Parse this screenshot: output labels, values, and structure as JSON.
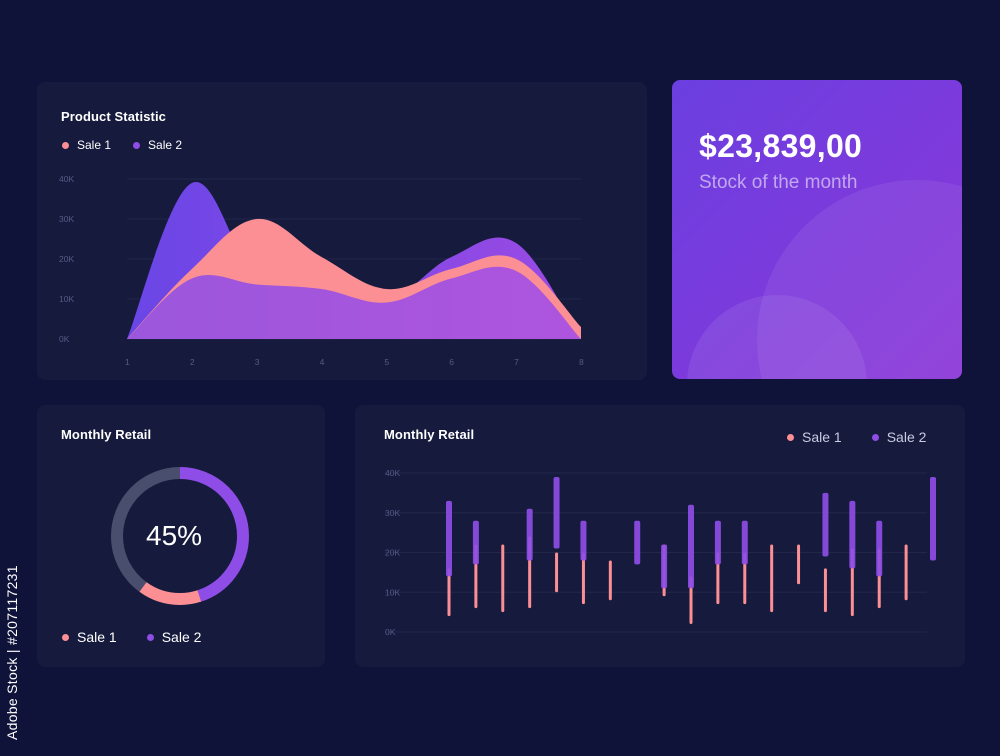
{
  "product_statistic": {
    "title": "Product Statistic",
    "legend": [
      {
        "label": "Sale 1",
        "color": "#fb8f94"
      },
      {
        "label": "Sale 2",
        "color": "#8e4de6"
      }
    ],
    "chart_data": {
      "type": "area",
      "x": [
        1,
        2,
        3,
        4,
        5,
        6,
        7,
        8
      ],
      "x_tick_labels": [
        "1",
        "2",
        "3",
        "4",
        "5",
        "6",
        "7",
        "8"
      ],
      "y_tick_labels": [
        "40K",
        "30K",
        "20K",
        "10K",
        "0K"
      ],
      "ylim": [
        0,
        40000
      ],
      "grid": true,
      "series": [
        {
          "name": "Sale 1",
          "color": "#fb8f94",
          "values": [
            0,
            17500,
            30000,
            20500,
            12500,
            17500,
            20000,
            3000
          ]
        },
        {
          "name": "Sale 2",
          "color": "#7a45e0",
          "values": [
            0,
            39000,
            15500,
            14000,
            9500,
            20500,
            24000,
            0
          ]
        }
      ]
    }
  },
  "stock": {
    "value": "$23,839,00",
    "label": "Stock of the month"
  },
  "monthly_retail_donut": {
    "title": "Monthly Retail",
    "percent_label": "45%",
    "legend": [
      {
        "label": "Sale 1",
        "color": "#fb8f94"
      },
      {
        "label": "Sale 2",
        "color": "#8e4de6"
      }
    ],
    "chart_data": {
      "type": "pie",
      "segments": [
        {
          "name": "Sale 2",
          "color": "#8e4de6",
          "fraction": 0.45
        },
        {
          "name": "Sale 1",
          "color": "#fb8f94",
          "fraction": 0.15
        },
        {
          "name": "Remainder",
          "color": "#4a4e6e",
          "fraction": 0.4
        }
      ]
    }
  },
  "monthly_retail_bars": {
    "title": "Monthly Retail",
    "legend": [
      {
        "label": "Sale 1",
        "color": "#fb8f94"
      },
      {
        "label": "Sale 2",
        "color": "#8e4de6"
      }
    ],
    "chart_data": {
      "type": "bar",
      "y_tick_labels": [
        "40K",
        "30K",
        "20K",
        "10K",
        "0K"
      ],
      "ylim": [
        0,
        40000
      ],
      "grid": true,
      "series": [
        {
          "name": "Sale 1",
          "color": "#fb8f94",
          "ranges": [
            [
              4000,
              16000
            ],
            [
              6000,
              22000
            ],
            [
              5000,
              22000
            ],
            [
              6000,
              24000
            ],
            [
              10000,
              20000
            ],
            [
              7000,
              20000
            ],
            [
              8000,
              18000
            ],
            null,
            [
              9000,
              22000
            ],
            [
              2000,
              14000
            ],
            [
              7000,
              20000
            ],
            [
              7000,
              20000
            ],
            [
              5000,
              22000
            ],
            [
              12000,
              22000
            ],
            [
              5000,
              16000
            ],
            [
              4000,
              21000
            ],
            [
              6000,
              21000
            ],
            [
              8000,
              22000
            ],
            null
          ],
          "_note": ""
        },
        {
          "name": "Sale 2",
          "color": "#8e4de6",
          "ranges": [
            [
              14000,
              33000
            ],
            [
              17000,
              28000
            ],
            null,
            [
              18000,
              31000
            ],
            [
              21000,
              39000
            ],
            [
              18000,
              28000
            ],
            null,
            [
              17000,
              28000
            ],
            [
              11000,
              22000
            ],
            [
              11000,
              32000
            ],
            [
              17000,
              28000
            ],
            [
              17000,
              28000
            ],
            null,
            null,
            [
              19000,
              35000
            ],
            [
              16000,
              33000
            ],
            [
              14000,
              28000
            ],
            null,
            [
              18000,
              39000
            ]
          ]
        }
      ]
    }
  }
}
